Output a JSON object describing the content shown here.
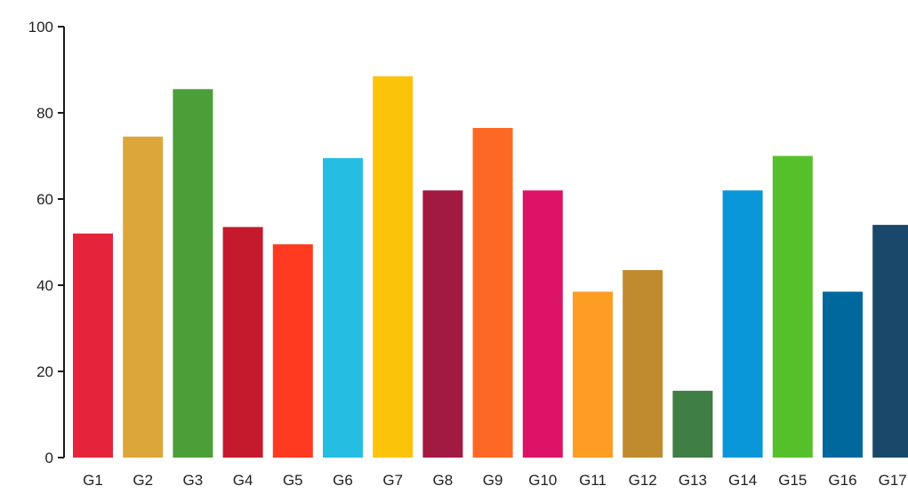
{
  "chart_data": {
    "type": "bar",
    "title": "",
    "xlabel": "",
    "ylabel": "",
    "ylim": [
      0,
      100
    ],
    "yticks": [
      0,
      20,
      40,
      60,
      80,
      100
    ],
    "grid": false,
    "legend": "none",
    "categories": [
      "G1",
      "G2",
      "G3",
      "G4",
      "G5",
      "G6",
      "G7",
      "G8",
      "G9",
      "G10",
      "G11",
      "G12",
      "G13",
      "G14",
      "G15",
      "G16",
      "G17"
    ],
    "values": [
      52,
      74.5,
      85.5,
      53.5,
      49.5,
      69.5,
      88.5,
      62,
      76.5,
      62,
      38.5,
      43.5,
      15.5,
      62,
      70,
      38.5,
      54
    ],
    "colors": [
      "#E5243B",
      "#DDA63A",
      "#4C9F38",
      "#C5192D",
      "#FF3A21",
      "#26BDE2",
      "#FCC30B",
      "#A21942",
      "#FD6925",
      "#DD1367",
      "#FD9D24",
      "#BF8B2E",
      "#3F7E44",
      "#0A97D9",
      "#56C02B",
      "#00689D",
      "#19486A"
    ]
  }
}
